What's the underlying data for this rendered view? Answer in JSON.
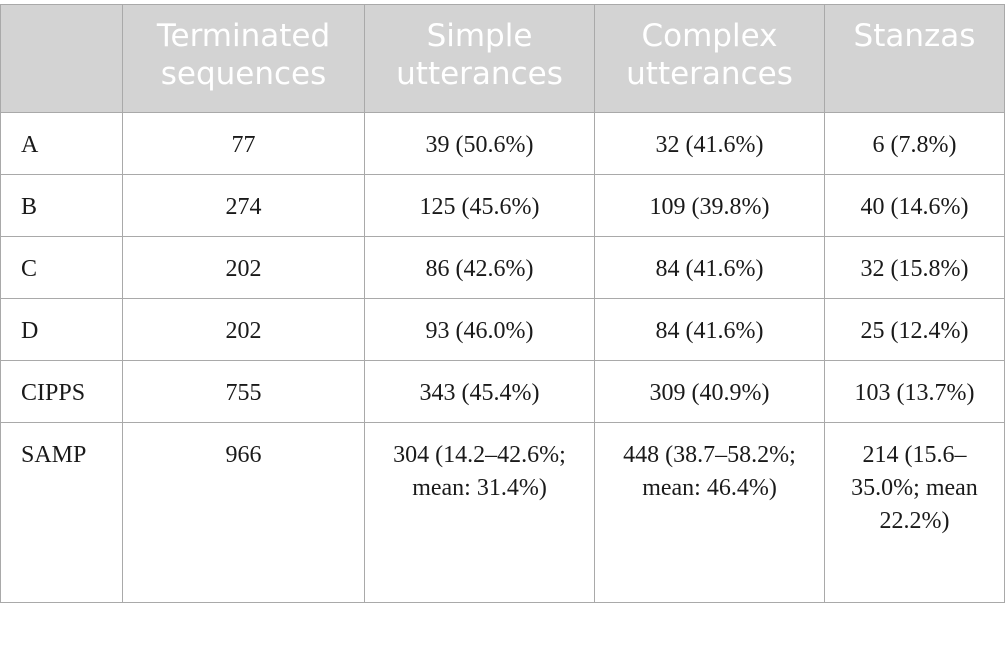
{
  "table": {
    "headers": [
      "",
      "Terminated sequences",
      "Simple utterances",
      "Complex utterances",
      "Stanzas"
    ],
    "rows": [
      [
        "A",
        "77",
        "39 (50.6%)",
        "32 (41.6%)",
        "6 (7.8%)"
      ],
      [
        "B",
        "274",
        "125 (45.6%)",
        "109 (39.8%)",
        "40 (14.6%)"
      ],
      [
        "C",
        "202",
        "86 (42.6%)",
        "84 (41.6%)",
        "32 (15.8%)"
      ],
      [
        "D",
        "202",
        "93 (46.0%)",
        "84 (41.6%)",
        "25 (12.4%)"
      ],
      [
        "CIPPS",
        "755",
        "343 (45.4%)",
        "309 (40.9%)",
        "103 (13.7%)"
      ],
      [
        "SAMP",
        "966",
        "304 (14.2–42.6%; mean: 31.4%)",
        "448 (38.7–58.2%; mean: 46.4%)",
        "214 (15.6–35.0%; mean 22.2%)"
      ]
    ]
  },
  "colors": {
    "header_bg": "#d3d3d3",
    "header_text": "#ffffff",
    "border": "#a9a9a9",
    "body_text": "#1a1a1a"
  }
}
